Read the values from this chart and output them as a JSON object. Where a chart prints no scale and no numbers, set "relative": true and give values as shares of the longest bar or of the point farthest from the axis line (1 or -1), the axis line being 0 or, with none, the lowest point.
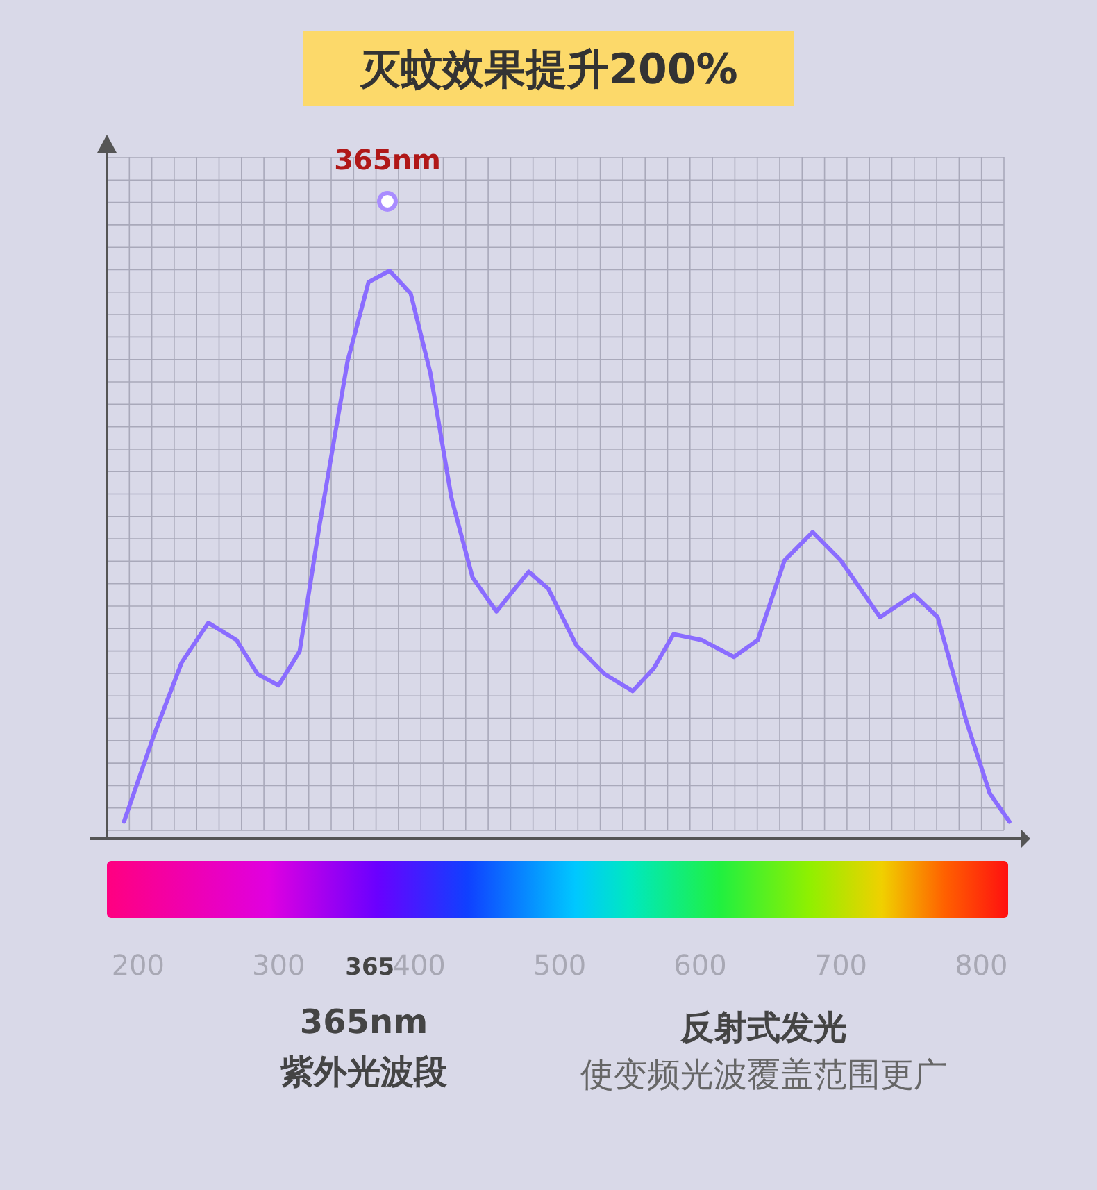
{
  "chart_data": {
    "type": "line",
    "title": "灭蚊效果提升200%",
    "relative": true,
    "grid": true,
    "xlim": [
      166,
      828
    ],
    "xticks": [
      200,
      300,
      {
        "value": 365,
        "label": "365"
      },
      400,
      500,
      600,
      700,
      800
    ],
    "x": [
      190,
      211,
      231,
      250,
      270,
      285,
      300,
      315,
      329,
      349,
      364,
      379,
      394,
      408,
      423,
      438,
      455,
      468,
      478,
      492,
      512,
      532,
      552,
      567,
      581,
      601,
      624,
      641,
      660,
      680,
      700,
      728,
      752,
      769,
      789,
      806,
      820
    ],
    "series": [
      {
        "color": "#8a6cff",
        "values": [
          0.03,
          0.18,
          0.31,
          0.38,
          0.35,
          0.29,
          0.27,
          0.33,
          0.55,
          0.84,
          0.98,
          1,
          0.96,
          0.82,
          0.6,
          0.46,
          0.4,
          0.44,
          0.47,
          0.44,
          0.34,
          0.29,
          0.26,
          0.3,
          0.36,
          0.35,
          0.32,
          0.35,
          0.49,
          0.54,
          0.49,
          0.39,
          0.43,
          0.39,
          0.21,
          0.08,
          0.03
        ]
      }
    ],
    "annotations": [
      "365nm",
      "365nm",
      "紫外光波段",
      "反射式发光",
      "使变频光波覆盖范围更广"
    ]
  }
}
